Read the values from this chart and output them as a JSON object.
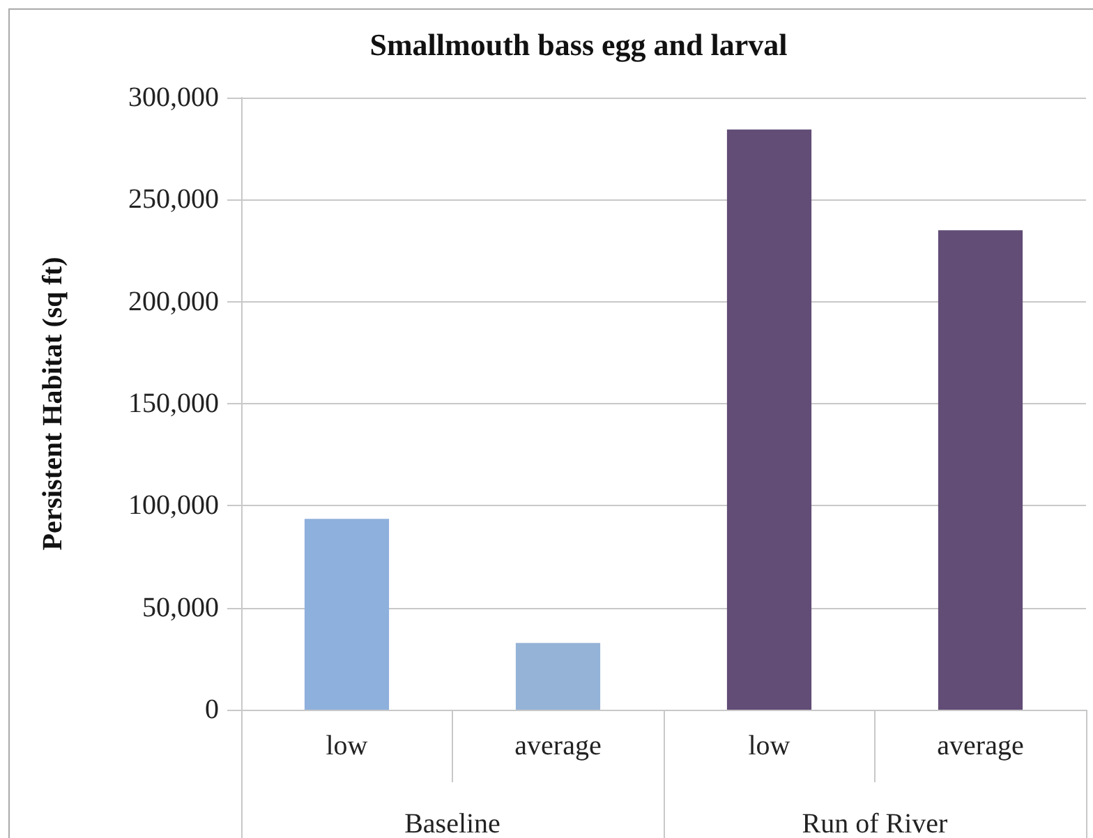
{
  "chart_data": {
    "type": "bar",
    "title": "Smallmouth bass egg and larval",
    "ylabel": "Persistent Habitat (sq ft)",
    "categories": [
      "low",
      "average",
      "low",
      "average"
    ],
    "values": [
      93500,
      32700,
      284400,
      235000
    ],
    "colors": [
      "#8eb0dc",
      "#95b3d7",
      "#624d76",
      "#624d76"
    ],
    "annotations": [
      "Baseline",
      "Run of River"
    ],
    "ylim": [
      0,
      300000
    ],
    "yticks": [
      0,
      {
        "value": 50000,
        "label": "50,000"
      },
      {
        "value": 100000,
        "label": "100,000"
      },
      {
        "value": 150000,
        "label": "150,000"
      },
      {
        "value": 200000,
        "label": "200,000"
      },
      {
        "value": 250000,
        "label": "250,000"
      },
      {
        "value": 300000,
        "label": "300,000"
      }
    ],
    "grid": "y"
  }
}
